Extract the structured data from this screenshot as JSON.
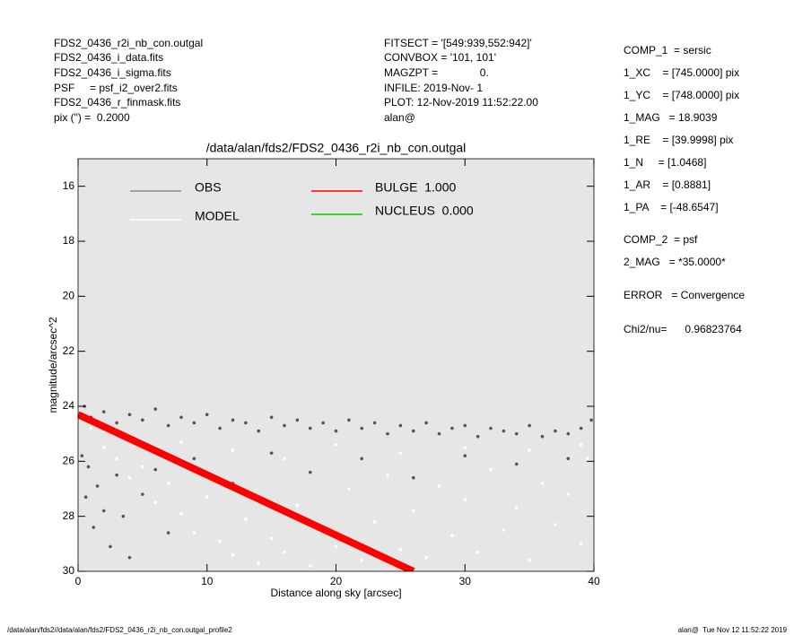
{
  "info_left": [
    "FDS2_0436_r2i_nb_con.outgal",
    "FDS2_0436_i_data.fits",
    "FDS2_0436_i_sigma.fits",
    "PSF     = psf_i2_over2.fits",
    "FDS2_0436_r_finmask.fits",
    "pix (\") =  0.2000"
  ],
  "info_center": [
    "FITSECT = '[549:939,552:942]'",
    "CONVBOX = '101, 101'",
    "MAGZPT =              0.",
    "INFILE: 2019-Nov- 1",
    "PLOT: 12-Nov-2019 11:52:22.00",
    "alan@"
  ],
  "info_right": [
    "COMP_1  = sersic",
    "1_XC    = [745.0000] pix",
    "1_YC    = [748.0000] pix",
    "1_MAG   = 18.9039",
    "1_RE    = [39.9998] pix",
    "1_N     = [1.0468]",
    "1_AR    = [0.8881]",
    "1_PA    = [-48.6547]",
    "COMP_2  = psf",
    "2_MAG   = *35.0000*",
    "ERROR   = Convergence",
    "Chi2/nu=      0.96823764"
  ],
  "footer_left": "/data/alan/fds2//data/alan/fds2/FDS2_0436_r2i_nb_con.outgal_profile2",
  "footer_right": "alan@  Tue Nov 12 11:52:22 2019",
  "chart_data": {
    "type": "scatter",
    "title": "/data/alan/fds2/FDS2_0436_r2i_nb_con.outgal",
    "x_label": "Distance along sky [arcsec]",
    "y_label": "magnitude/arcsec^2",
    "xlim": [
      0,
      40
    ],
    "xticks": [
      0,
      10,
      20,
      30,
      40
    ],
    "ylim": [
      30,
      15
    ],
    "yticks": [
      16,
      18,
      20,
      22,
      24,
      26,
      28,
      30
    ],
    "series": [
      {
        "name": "OBS",
        "color": "#555555",
        "kind": "points",
        "x": [
          0.5,
          1,
          2,
          3,
          4,
          5,
          6,
          7,
          8,
          9,
          10,
          11,
          12,
          13,
          14,
          15,
          16,
          17,
          18,
          19,
          20,
          21,
          22,
          23,
          24,
          25,
          26,
          27,
          28,
          29,
          30,
          31,
          32,
          33,
          34,
          35,
          36,
          37,
          38,
          39,
          39.8,
          0.3,
          0.6,
          0.8,
          1.2,
          1.5,
          2,
          2.5,
          3,
          3.5,
          4,
          5,
          6,
          7,
          9,
          12,
          15,
          18,
          22,
          26,
          30,
          34,
          38
        ],
        "values": [
          24.0,
          24.4,
          24.2,
          24.6,
          24.3,
          24.5,
          24.1,
          24.7,
          24.4,
          24.6,
          24.3,
          24.8,
          24.5,
          24.6,
          24.9,
          24.4,
          24.7,
          24.5,
          24.8,
          24.6,
          24.9,
          24.5,
          24.8,
          24.6,
          25.0,
          24.7,
          24.9,
          24.6,
          25.0,
          24.8,
          24.7,
          25.1,
          24.8,
          24.9,
          25.0,
          24.7,
          25.1,
          24.9,
          25.0,
          24.8,
          24.5,
          25.8,
          27.3,
          26.2,
          28.4,
          26.9,
          27.8,
          29.1,
          26.5,
          28.0,
          29.5,
          27.2,
          26.3,
          28.6,
          25.9,
          26.8,
          25.7,
          26.4,
          25.9,
          26.6,
          25.8,
          26.1,
          25.9
        ]
      },
      {
        "name": "MODEL",
        "color": "#ffffff",
        "kind": "points",
        "x": [
          1,
          2,
          3,
          4,
          5,
          6,
          7,
          8,
          9,
          10,
          11,
          12,
          13,
          14,
          15,
          16,
          17,
          18,
          19,
          20,
          21,
          22,
          23,
          24,
          25,
          26,
          27,
          28,
          29,
          30,
          31,
          32,
          33,
          34,
          35,
          36,
          37,
          38,
          39,
          39.5,
          8,
          12,
          16,
          20,
          25,
          30,
          35,
          39
        ],
        "values": [
          24.8,
          25.5,
          25.9,
          26.6,
          26.2,
          27.5,
          26.8,
          27.9,
          28.6,
          27.3,
          28.9,
          29.4,
          28.1,
          29.7,
          28.8,
          29.3,
          27.6,
          29.8,
          28.4,
          29.1,
          27.0,
          29.6,
          28.2,
          26.5,
          29.2,
          27.8,
          29.5,
          26.9,
          28.7,
          27.4,
          29.3,
          26.3,
          28.5,
          27.7,
          29.6,
          26.8,
          28.3,
          27.2,
          29.0,
          25.9,
          25.3,
          25.6,
          25.9,
          25.4,
          25.7,
          25.5,
          25.6,
          25.4
        ]
      },
      {
        "name": "BULGE  1.000",
        "color": "#ff0000",
        "kind": "line",
        "x": [
          0,
          26
        ],
        "values": [
          24.3,
          30
        ]
      },
      {
        "name": "NUCLEUS  0.000",
        "color": "#00cc00",
        "kind": "line"
      }
    ]
  }
}
